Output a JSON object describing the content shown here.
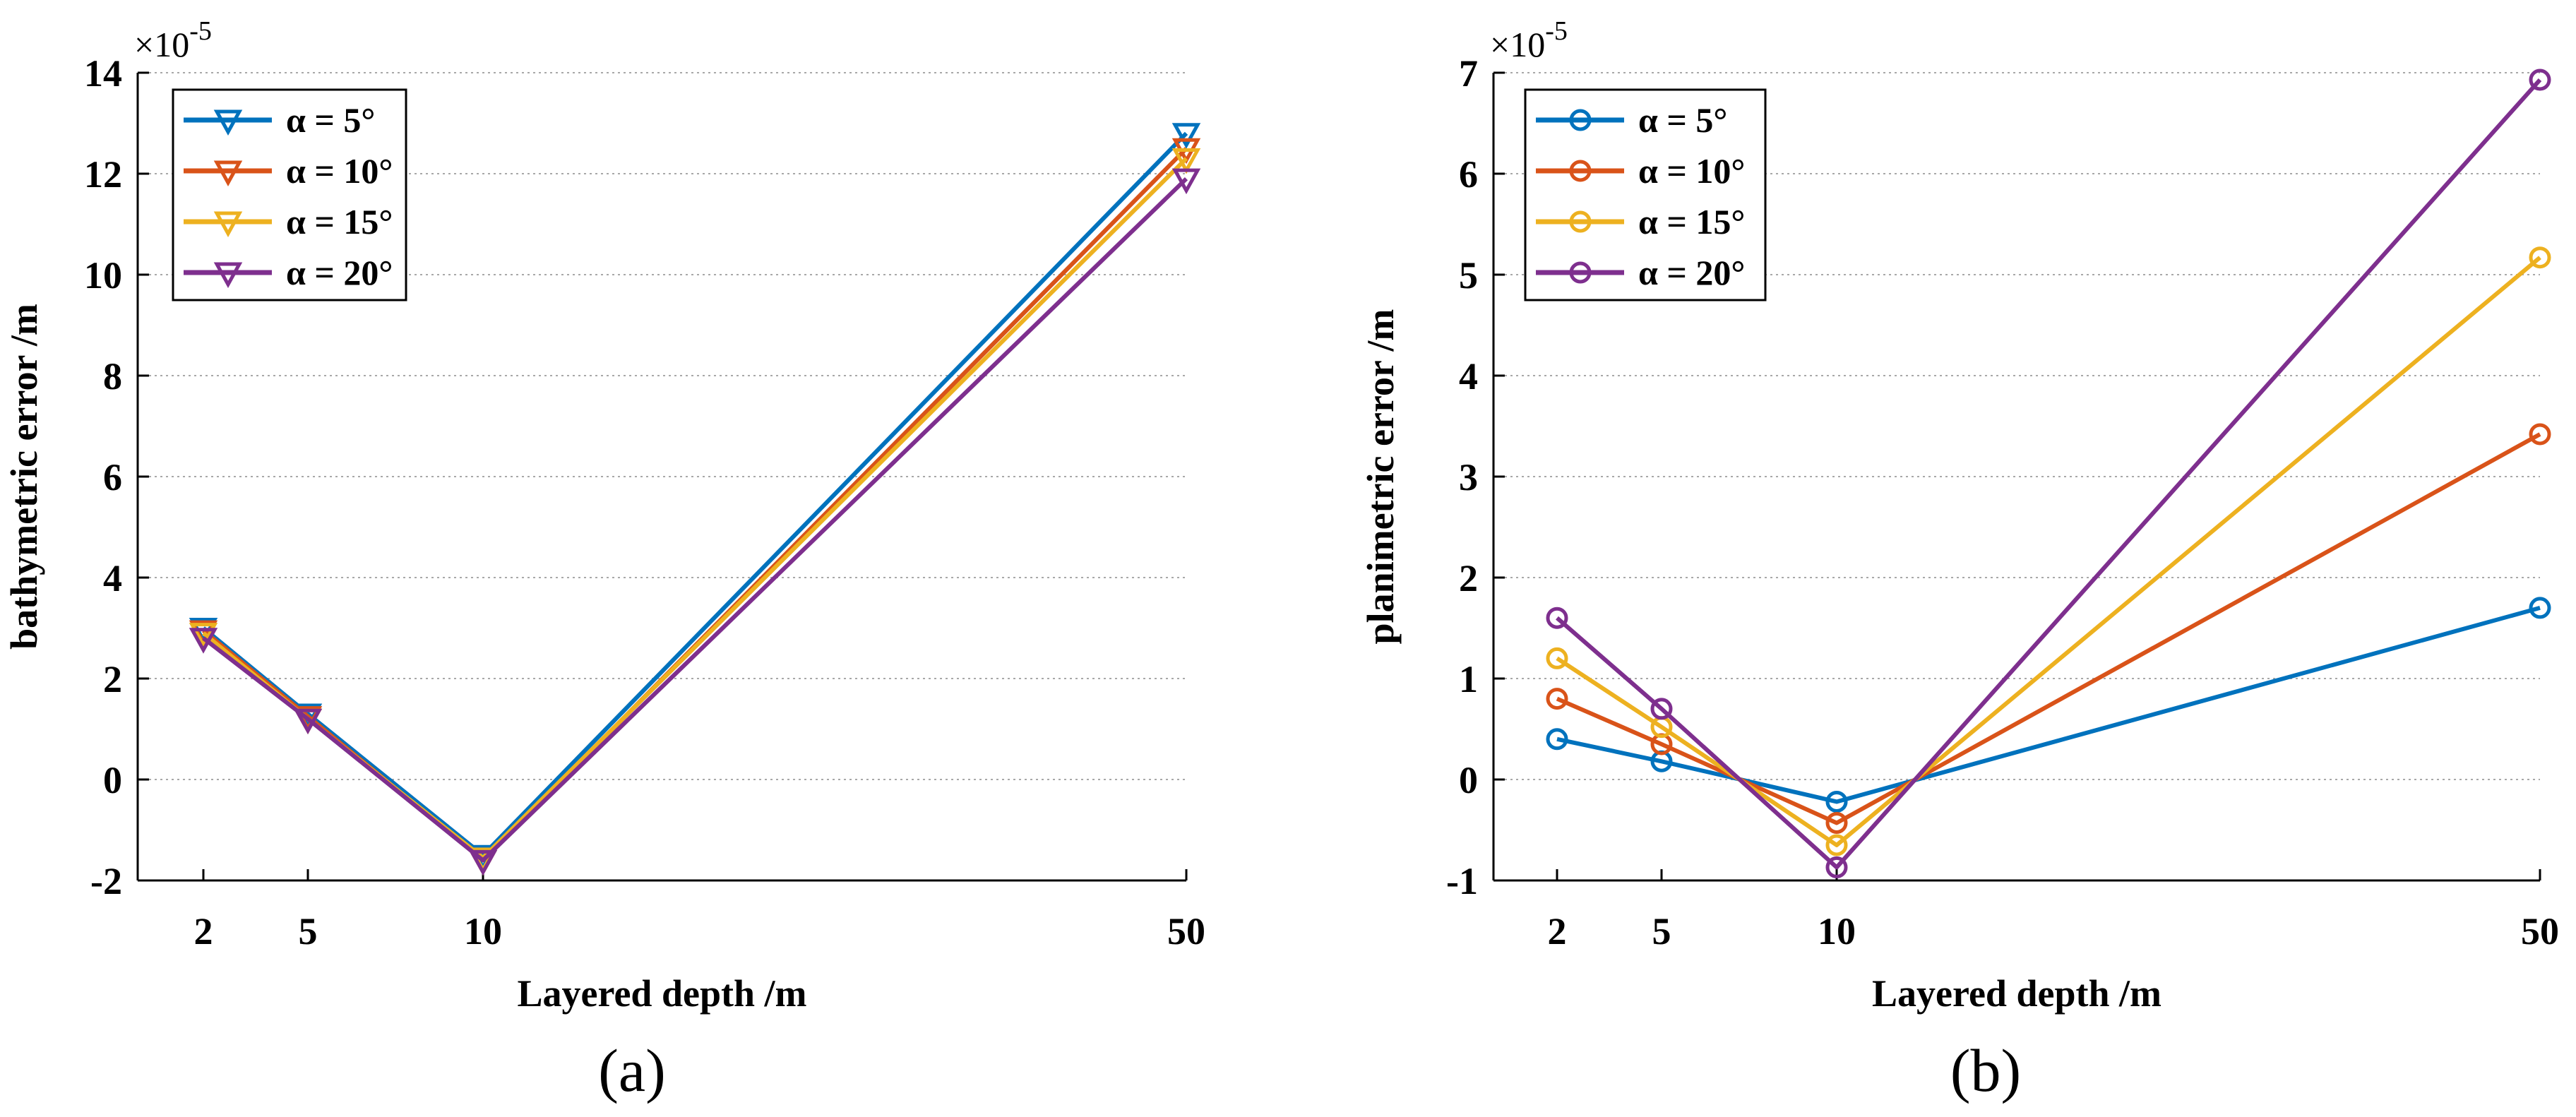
{
  "chart_data": [
    {
      "type": "line",
      "panel": "(a)",
      "x": [
        2,
        5,
        10,
        50
      ],
      "xticks": [
        "2",
        "5",
        "10",
        "50"
      ],
      "xlabel": "Layered depth /m",
      "ylabel": "bathymetric error /m",
      "ylim": [
        -2,
        14
      ],
      "yticks": [
        "-2",
        "0",
        "2",
        "4",
        "6",
        "8",
        "10",
        "12",
        "14"
      ],
      "y_multiplier": "×10",
      "y_exponent": "-5",
      "marker": "triangle-down",
      "grid": "horizontal dotted",
      "legend_position": "top-left",
      "series": [
        {
          "name": "α = 5°",
          "color": "#0072BD",
          "values": [
            3.0,
            1.3,
            -1.5,
            12.8
          ]
        },
        {
          "name": "α = 10°",
          "color": "#D95319",
          "values": [
            2.95,
            1.25,
            -1.6,
            12.5
          ]
        },
        {
          "name": "α = 15°",
          "color": "#EDB120",
          "values": [
            2.9,
            1.2,
            -1.55,
            12.3
          ]
        },
        {
          "name": "α = 20°",
          "color": "#7E2F8E",
          "values": [
            2.8,
            1.2,
            -1.6,
            11.9
          ]
        }
      ]
    },
    {
      "type": "line",
      "panel": "(b)",
      "x": [
        2,
        5,
        10,
        50
      ],
      "xticks": [
        "2",
        "5",
        "10",
        "50"
      ],
      "xlabel": "Layered depth /m",
      "ylabel": "planimetric error /m",
      "ylim": [
        -1,
        7
      ],
      "yticks": [
        "-1",
        "0",
        "1",
        "2",
        "3",
        "4",
        "5",
        "6",
        "7"
      ],
      "y_multiplier": "×10",
      "y_exponent": "-5",
      "marker": "circle",
      "grid": "horizontal dotted",
      "legend_position": "top-left",
      "series": [
        {
          "name": "α = 5°",
          "color": "#0072BD",
          "values": [
            0.4,
            0.18,
            -0.22,
            1.7
          ]
        },
        {
          "name": "α = 10°",
          "color": "#D95319",
          "values": [
            0.8,
            0.35,
            -0.43,
            3.42
          ]
        },
        {
          "name": "α = 15°",
          "color": "#EDB120",
          "values": [
            1.2,
            0.52,
            -0.65,
            5.17
          ]
        },
        {
          "name": "α = 20°",
          "color": "#7E2F8E",
          "values": [
            1.6,
            0.7,
            -0.87,
            6.93
          ]
        }
      ]
    }
  ]
}
